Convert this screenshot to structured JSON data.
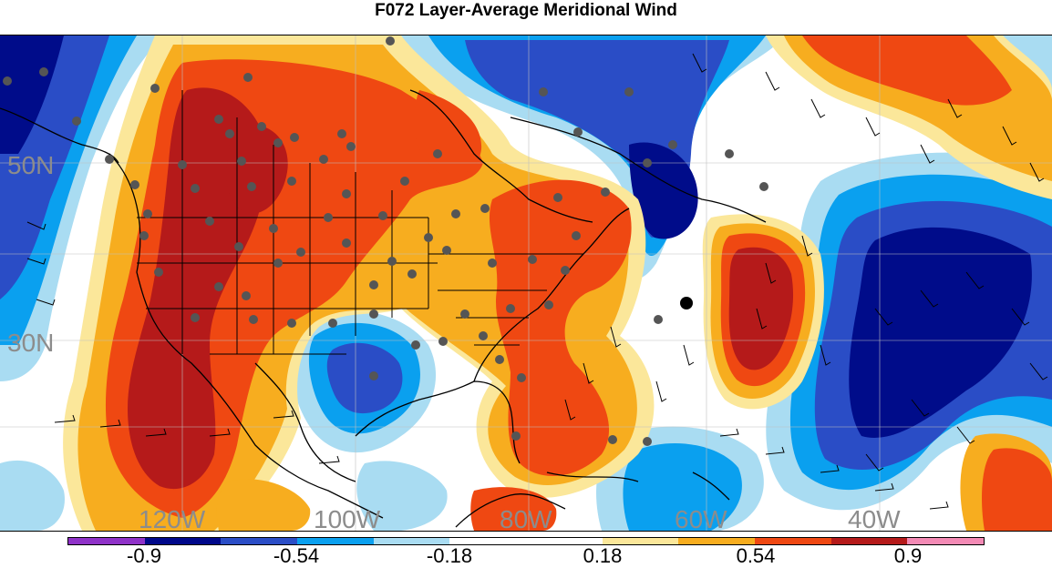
{
  "title": "F072 Layer-Average Meridional Wind",
  "lat_labels": [
    "50N",
    "30N"
  ],
  "lon_labels": [
    "120W",
    "100W",
    "80W",
    "60W",
    "40W"
  ],
  "colorbar": {
    "colors": [
      "#8f32c8",
      "#00088a",
      "#2a4dc6",
      "#0aa0ef",
      "#a9dcf2",
      "#ffffff",
      "#ffffff",
      "#fbe79a",
      "#f7ad1f",
      "#ef4812",
      "#b51a1a",
      "#f38ab5"
    ],
    "tick_labels": [
      "-0.9",
      "-0.54",
      "-0.18",
      "0.18",
      "0.54",
      "0.9"
    ]
  },
  "fill_colors": {
    "strong_neg": "#000c8a",
    "mid_neg": "#2a4dc6",
    "light_neg": "#0aa0ef",
    "pale_neg": "#a9dcf2",
    "pale_pos": "#fbe79a",
    "light_pos": "#f7ad1f",
    "mid_pos": "#ef4812",
    "strong_pos": "#b51a1a"
  }
}
